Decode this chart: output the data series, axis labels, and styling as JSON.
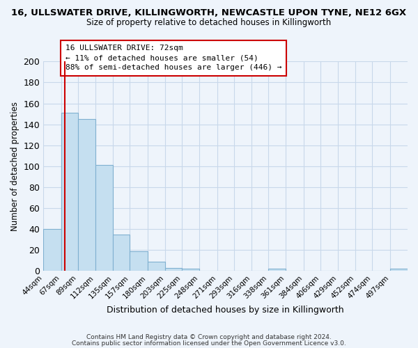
{
  "title_line1": "16, ULLSWATER DRIVE, KILLINGWORTH, NEWCASTLE UPON TYNE, NE12 6GX",
  "title_line2": "Size of property relative to detached houses in Killingworth",
  "xlabel": "Distribution of detached houses by size in Killingworth",
  "ylabel": "Number of detached properties",
  "bin_labels": [
    "44sqm",
    "67sqm",
    "89sqm",
    "112sqm",
    "135sqm",
    "157sqm",
    "180sqm",
    "203sqm",
    "225sqm",
    "248sqm",
    "271sqm",
    "293sqm",
    "316sqm",
    "338sqm",
    "361sqm",
    "384sqm",
    "406sqm",
    "429sqm",
    "452sqm",
    "474sqm",
    "497sqm"
  ],
  "bar_heights": [
    40,
    151,
    145,
    101,
    35,
    19,
    9,
    3,
    2,
    0,
    0,
    0,
    0,
    2,
    0,
    0,
    0,
    0,
    0,
    0,
    2
  ],
  "bar_color": "#c5dff0",
  "property_line_x": 72,
  "property_line_color": "#cc0000",
  "ylim": [
    0,
    200
  ],
  "yticks": [
    0,
    20,
    40,
    60,
    80,
    100,
    120,
    140,
    160,
    180,
    200
  ],
  "annotation_box_text": "16 ULLSWATER DRIVE: 72sqm\n← 11% of detached houses are smaller (54)\n88% of semi-detached houses are larger (446) →",
  "footer_line1": "Contains HM Land Registry data © Crown copyright and database right 2024.",
  "footer_line2": "Contains public sector information licensed under the Open Government Licence v3.0.",
  "bg_color": "#eef4fb",
  "grid_color": "#c8d8ea",
  "bin_edges": [
    44,
    67,
    89,
    112,
    135,
    157,
    180,
    203,
    225,
    248,
    271,
    293,
    316,
    338,
    361,
    384,
    406,
    429,
    452,
    474,
    497,
    520
  ]
}
